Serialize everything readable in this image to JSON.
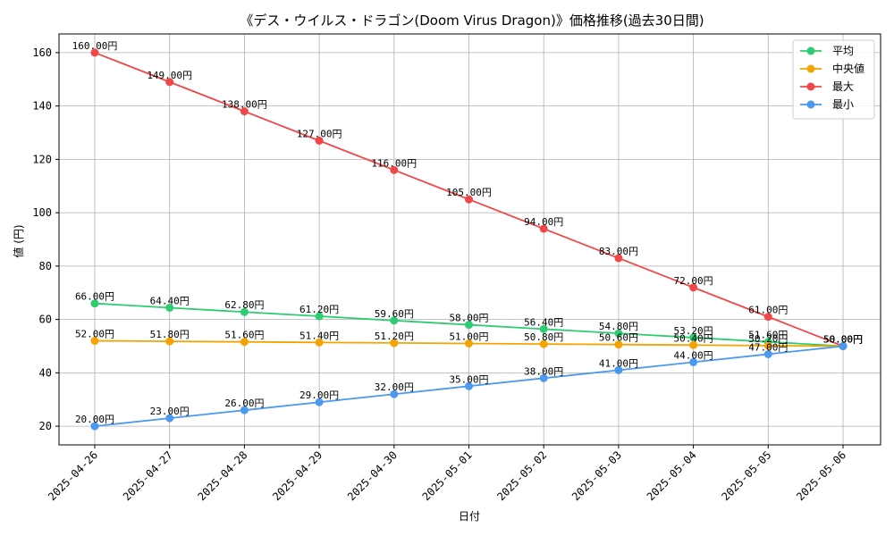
{
  "chart_data": {
    "type": "line",
    "title": "《デス・ウイルス・ドラゴン(Doom Virus Dragon)》価格推移(過去30日間)",
    "xlabel": "日付",
    "ylabel": "値 (円)",
    "ylim": [
      13,
      167
    ],
    "yticks": [
      20,
      40,
      60,
      80,
      100,
      120,
      140,
      160
    ],
    "grid": true,
    "legend_position": "top-right",
    "label_suffix": "円",
    "categories": [
      "2025-04-26",
      "2025-04-27",
      "2025-04-28",
      "2025-04-29",
      "2025-04-30",
      "2025-05-01",
      "2025-05-02",
      "2025-05-03",
      "2025-05-04",
      "2025-05-05",
      "2025-05-06"
    ],
    "series": [
      {
        "name": "平均",
        "color": "#2ecc71",
        "values": [
          66.0,
          64.4,
          62.8,
          61.2,
          59.6,
          58.0,
          56.4,
          54.8,
          53.2,
          51.6,
          50.0
        ],
        "labels": [
          "66.00円",
          "64.40円",
          "62.80円",
          "61.20円",
          "59.60円",
          "58.00円",
          "56.40円",
          "54.80円",
          "53.20円",
          "51.60円",
          "50.00円"
        ]
      },
      {
        "name": "中央値",
        "color": "#f5a300",
        "values": [
          52.0,
          51.8,
          51.6,
          51.4,
          51.2,
          51.0,
          50.8,
          50.6,
          50.4,
          50.2,
          50.0
        ],
        "labels": [
          "52.00円",
          "51.80円",
          "51.60円",
          "51.40円",
          "51.20円",
          "51.00円",
          "50.80円",
          "50.60円",
          "50.40円",
          "50.20円",
          "50.00円"
        ]
      },
      {
        "name": "最大",
        "color": "#f04848",
        "values": [
          160,
          149,
          138,
          127,
          116,
          105,
          94,
          83,
          72,
          61,
          50
        ],
        "labels": [
          "160.00円",
          "149.00円",
          "138.00円",
          "127.00円",
          "116.00円",
          "105.00円",
          "94.00円",
          "83.00円",
          "72.00円",
          "61.00円",
          "50.00円"
        ]
      },
      {
        "name": "最小",
        "color": "#4a98f0",
        "values": [
          20,
          23,
          26,
          29,
          32,
          35,
          38,
          41,
          44,
          47,
          50
        ],
        "labels": [
          "20.00円",
          "23.00円",
          "26.00円",
          "29.00円",
          "32.00円",
          "35.00円",
          "38.00円",
          "41.00円",
          "44.00円",
          "47.00円",
          "50.00円"
        ]
      }
    ]
  }
}
